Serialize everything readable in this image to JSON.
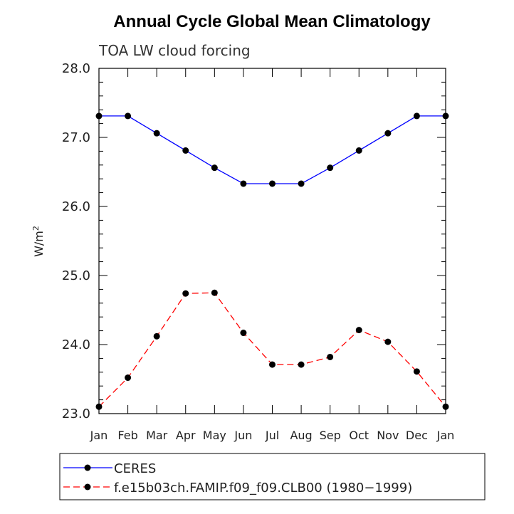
{
  "chart_data": {
    "type": "line",
    "title": "Annual Cycle Global Mean Climatology",
    "subtitle": "TOA LW cloud forcing",
    "ylabel": "W/m",
    "ylabel_sup": "2",
    "xlabel": "",
    "ylim": [
      23.0,
      28.0
    ],
    "yticks": [
      "23.0",
      "24.0",
      "25.0",
      "26.0",
      "27.0",
      "28.0"
    ],
    "categories": [
      "Jan",
      "Feb",
      "Mar",
      "Apr",
      "May",
      "Jun",
      "Jul",
      "Aug",
      "Sep",
      "Oct",
      "Nov",
      "Dec",
      "Jan"
    ],
    "series": [
      {
        "name": "CERES",
        "color": "#0000ff",
        "dash": "solid",
        "values": [
          27.31,
          27.31,
          27.06,
          26.81,
          26.56,
          26.33,
          26.33,
          26.33,
          26.56,
          26.81,
          27.06,
          27.31,
          27.31
        ]
      },
      {
        "name": "f.e15b03ch.FAMIP.f09_f09.CLB00 (1980−1999)",
        "color": "#ff0000",
        "dash": "dashed",
        "values": [
          23.1,
          23.52,
          24.12,
          24.74,
          24.75,
          24.17,
          23.71,
          23.71,
          23.82,
          24.21,
          24.04,
          23.61,
          23.1
        ]
      }
    ],
    "legend_position": "bottom-left"
  }
}
